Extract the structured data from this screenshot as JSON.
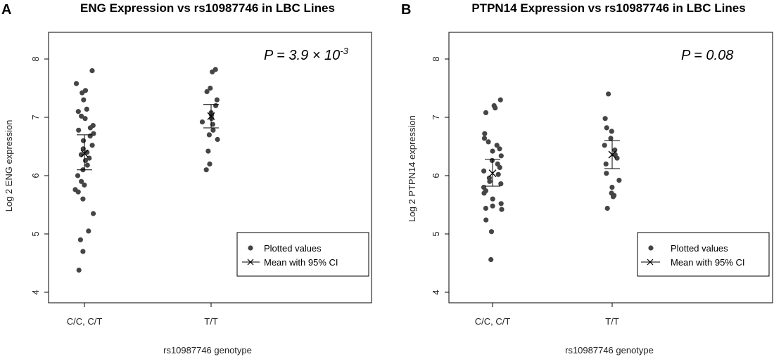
{
  "chart_data": [
    {
      "type": "scatter",
      "panel": "A",
      "title": "ENG Expression vs rs10987746 in LBC Lines",
      "xlabel": "rs10987746 genotype",
      "ylabel": "Log 2 ENG expression",
      "categories": [
        "C/C, C/T",
        "T/T"
      ],
      "ylim": [
        3.8,
        8.4
      ],
      "yticks": [
        "4",
        "5",
        "6",
        "7",
        "8"
      ],
      "p_value": {
        "prefix": "P = 3.9 ",
        "times": "×",
        "base": " 10",
        "exponent": "-3"
      },
      "legend": {
        "points": "Plotted values",
        "mean": "Mean with 95% CI"
      },
      "series": [
        {
          "name": "C/C, C/T",
          "values": [
            7.8,
            7.58,
            7.46,
            7.42,
            7.3,
            7.14,
            7.1,
            7.02,
            6.98,
            6.86,
            6.82,
            6.78,
            6.72,
            6.68,
            6.6,
            6.52,
            6.46,
            6.4,
            6.36,
            6.3,
            6.26,
            6.18,
            6.1,
            6.0,
            5.9,
            5.84,
            5.76,
            5.72,
            5.6,
            5.35,
            5.05,
            4.9,
            4.7,
            4.38
          ],
          "mean": 6.38,
          "ci_low": 6.1,
          "ci_high": 6.7
        },
        {
          "name": "T/T",
          "values": [
            7.82,
            7.78,
            7.5,
            7.44,
            7.3,
            7.2,
            7.08,
            7.04,
            6.98,
            6.92,
            6.88,
            6.78,
            6.7,
            6.62,
            6.42,
            6.2,
            6.1
          ],
          "mean": 7.02,
          "ci_low": 6.82,
          "ci_high": 7.22
        }
      ]
    },
    {
      "type": "scatter",
      "panel": "B",
      "title": "PTPN14 Expression vs rs10987746 in LBC Lines",
      "xlabel": "rs10987746 genotype",
      "ylabel": "Log 2 PTPN14 expression",
      "categories": [
        "C/C, C/T",
        "T/T"
      ],
      "ylim": [
        3.8,
        8.4
      ],
      "yticks": [
        "4",
        "5",
        "6",
        "7",
        "8"
      ],
      "p_value": {
        "prefix": "P = 0.08",
        "times": "",
        "base": "",
        "exponent": ""
      },
      "legend": {
        "points": "Plotted values",
        "mean": "Mean with 95% CI"
      },
      "series": [
        {
          "name": "C/C, C/T",
          "values": [
            7.3,
            7.2,
            7.16,
            7.08,
            6.72,
            6.64,
            6.58,
            6.52,
            6.46,
            6.42,
            6.34,
            6.26,
            6.2,
            6.14,
            6.08,
            6.02,
            5.96,
            5.9,
            5.86,
            5.8,
            5.74,
            5.7,
            5.6,
            5.52,
            5.48,
            5.44,
            5.42,
            5.24,
            5.04,
            4.56
          ],
          "mean": 6.04,
          "ci_low": 5.82,
          "ci_high": 6.28
        },
        {
          "name": "T/T",
          "values": [
            7.4,
            6.98,
            6.82,
            6.76,
            6.64,
            6.52,
            6.44,
            6.36,
            6.3,
            6.2,
            6.04,
            5.92,
            5.8,
            5.7,
            5.66,
            5.64,
            5.44
          ],
          "mean": 6.36,
          "ci_low": 6.12,
          "ci_high": 6.6
        }
      ]
    }
  ]
}
